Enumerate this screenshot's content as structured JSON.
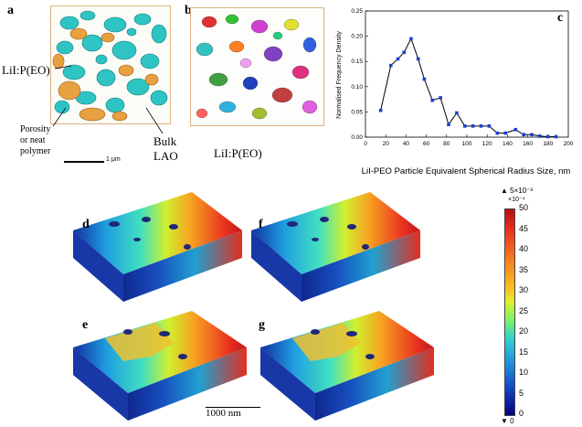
{
  "panels": {
    "a": "a",
    "b": "b",
    "c": "c",
    "d": "d",
    "e": "e",
    "f": "f",
    "g": "g"
  },
  "panel_a": {
    "label_lii": "LiI:P(EO)",
    "label_porosity_1": "Porosity",
    "label_porosity_2": "or neat",
    "label_porosity_3": "polymer",
    "label_bulk_1": "Bulk",
    "label_bulk_2": "LAO",
    "scale_text": "1 µm"
  },
  "panel_b": {
    "label_lii": "LiI:P(EO)"
  },
  "chart_data": {
    "type": "line",
    "title": "",
    "xlabel": "LiI-PEO Particle Equivalent Spherical Radius Size, nm",
    "ylabel": "Normalised Frequency Density",
    "xlim": [
      0,
      200
    ],
    "ylim": [
      0,
      0.25
    ],
    "xticks": [
      0,
      20,
      40,
      60,
      80,
      100,
      120,
      140,
      160,
      180,
      200
    ],
    "yticks": [
      0.0,
      0.05,
      0.1,
      0.15,
      0.2,
      0.25
    ],
    "xtick_labels": [
      "0",
      "20",
      "40",
      "60",
      "80",
      "100",
      "120",
      "140",
      "160",
      "180",
      "200"
    ],
    "ytick_labels": [
      "0.00",
      "0.05",
      "0.10",
      "0.15",
      "0.20",
      "0.25"
    ],
    "x": [
      15,
      25,
      32,
      38,
      45,
      52,
      58,
      66,
      74,
      82,
      90,
      98,
      106,
      114,
      122,
      130,
      138,
      148,
      156,
      164,
      172,
      180,
      188
    ],
    "y": [
      0.053,
      0.142,
      0.155,
      0.168,
      0.195,
      0.155,
      0.115,
      0.073,
      0.078,
      0.025,
      0.048,
      0.022,
      0.022,
      0.022,
      0.022,
      0.008,
      0.008,
      0.015,
      0.005,
      0.005,
      0.002,
      0.001,
      0.001
    ],
    "color": "#1f3fd0"
  },
  "colorbar": {
    "top_marker": "▲ 5×10⁻³",
    "multiplier": "×10⁻⁴",
    "ticks": [
      "50",
      "45",
      "40",
      "35",
      "30",
      "25",
      "20",
      "15",
      "10",
      "5",
      "0"
    ],
    "tick_values": [
      50,
      45,
      40,
      35,
      30,
      25,
      20,
      15,
      10,
      5,
      0
    ],
    "bottom_marker": "▼ 0"
  },
  "scale_bar_bottom": "1000 nm",
  "colors": {
    "cyan_particle": "#2ec4c4",
    "orange_particle": "#e8a040",
    "box_edge": "#e0b080"
  }
}
